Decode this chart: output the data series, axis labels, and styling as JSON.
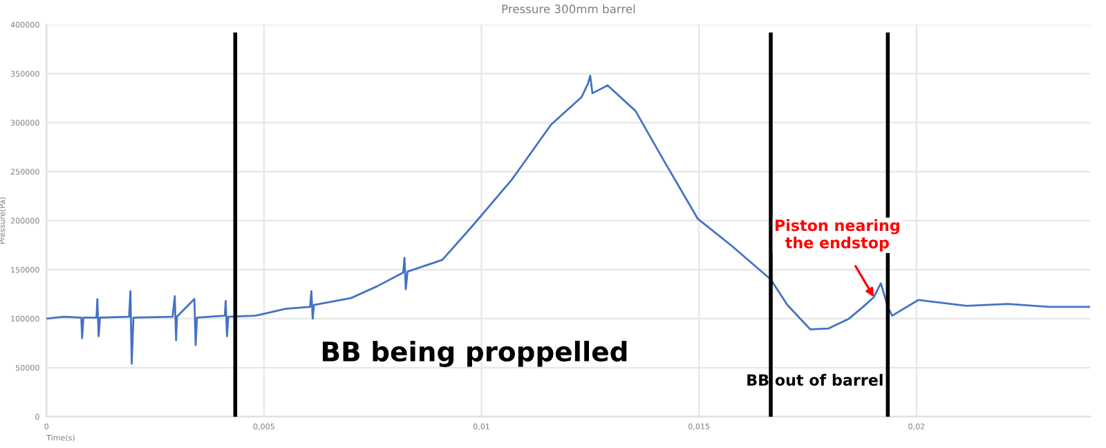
{
  "chart_data": {
    "type": "line",
    "title": "Pressure 300mm barrel",
    "xlabel": "Time(s)",
    "ylabel": "Pressure(Pa)",
    "x": [
      0,
      0.0004,
      0.0008,
      0.00082,
      0.00085,
      0.00115,
      0.00117,
      0.0012,
      0.00123,
      0.0019,
      0.00193,
      0.00196,
      0.002,
      0.0029,
      0.00295,
      0.00298,
      0.003,
      0.0034,
      0.00343,
      0.00346,
      0.0041,
      0.00412,
      0.00415,
      0.00418,
      0.0048,
      0.005,
      0.0055,
      0.00606,
      0.00609,
      0.00612,
      0.00615,
      0.007,
      0.0076,
      0.0082,
      0.00823,
      0.00826,
      0.0083,
      0.0091,
      0.0098,
      0.0107,
      0.0116,
      0.0123,
      0.01245,
      0.0125,
      0.01255,
      0.0129,
      0.01354,
      0.01417,
      0.01497,
      0.01576,
      0.01665,
      0.01703,
      0.01756,
      0.01798,
      0.01845,
      0.01877,
      0.01902,
      0.01918,
      0.01934,
      0.01944,
      0.02004,
      0.02115,
      0.0221,
      0.02305,
      0.02397
    ],
    "series": [
      {
        "color": "#4472c4",
        "values": [
          100000,
          102000,
          101000,
          80000,
          101000,
          101000,
          120000,
          82000,
          101000,
          102000,
          128000,
          54000,
          101000,
          102000,
          123000,
          78000,
          102000,
          120000,
          73000,
          101000,
          103000,
          118000,
          82000,
          102000,
          103000,
          105000,
          110000,
          112000,
          128000,
          100000,
          114000,
          121000,
          133000,
          147000,
          162000,
          130000,
          148000,
          160000,
          195000,
          242000,
          298000,
          326000,
          340000,
          348000,
          330000,
          338000,
          312000,
          263000,
          202000,
          174000,
          140000,
          114000,
          89000,
          90000,
          100000,
          112000,
          122000,
          136000,
          112000,
          103000,
          119000,
          113000,
          115000,
          112000,
          112000
        ]
      }
    ],
    "xlim": [
      0,
      0.024
    ],
    "ylim": [
      0,
      400000
    ],
    "xticks": [
      0,
      {
        "value": 0.005,
        "label": "0,005"
      },
      {
        "value": 0.01,
        "label": "0,01"
      },
      {
        "value": 0.015,
        "label": "0,015"
      },
      {
        "value": 0.02,
        "label": "0,02"
      }
    ],
    "yticks": [
      0,
      50000,
      100000,
      150000,
      200000,
      250000,
      300000,
      350000,
      400000
    ],
    "grid": true,
    "legend": false,
    "marker": "none",
    "line_style": "solid",
    "ref_lines": [
      {
        "axis": "x",
        "value": 0.00434,
        "color": "#000000"
      },
      {
        "axis": "x",
        "value": 0.01665,
        "color": "#000000"
      },
      {
        "axis": "x",
        "value": 0.01934,
        "color": "#000000"
      }
    ],
    "annotations": [
      {
        "text": "Piston nearing the endstop",
        "x": 0.01902,
        "y": 122000
      },
      "BB being proppelled",
      "BB out of barrel"
    ]
  }
}
